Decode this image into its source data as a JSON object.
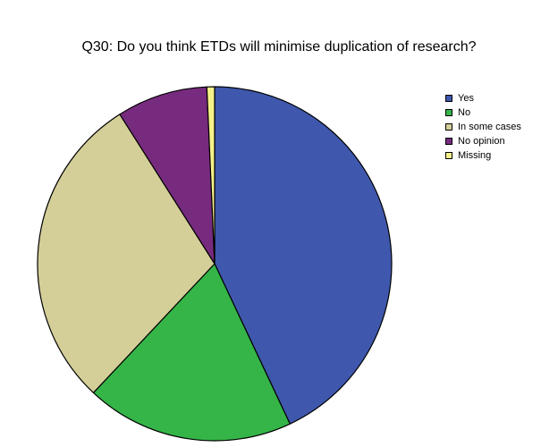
{
  "chart_data": {
    "type": "pie",
    "title": "Q30: Do you think ETDs will minimise duplication of research?",
    "categories": [
      "Yes",
      "No",
      "In some cases",
      "No opinion",
      "Missing"
    ],
    "values": [
      43.0,
      19.0,
      29.0,
      8.3,
      0.7
    ],
    "colors": [
      "#3f58ad",
      "#35b548",
      "#d4cf98",
      "#772b7e",
      "#f6f28a"
    ],
    "legend_position": "top-right",
    "start": "12 o'clock",
    "direction": "clockwise"
  }
}
